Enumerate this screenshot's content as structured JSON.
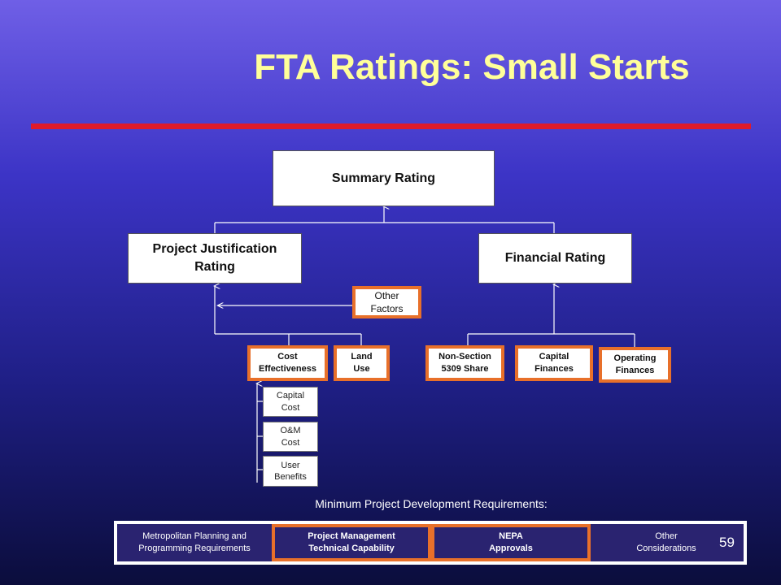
{
  "slide": {
    "title": "FTA Ratings: Small Starts",
    "page_number": "59"
  },
  "diagram": {
    "summary": "Summary Rating",
    "project_justification": {
      "line1": "Project Justification",
      "line2": "Rating"
    },
    "financial": "Financial Rating",
    "other_factors": {
      "line1": "Other",
      "line2": "Factors"
    },
    "cost_effectiveness": {
      "line1": "Cost",
      "line2": "Effectiveness"
    },
    "land_use": {
      "line1": "Land",
      "line2": "Use"
    },
    "non_section": {
      "line1": "Non-Section",
      "line2": "5309 Share"
    },
    "capital_finances": {
      "line1": "Capital",
      "line2": "Finances"
    },
    "operating_finances": {
      "line1": "Operating",
      "line2": "Finances"
    },
    "capital_cost": {
      "line1": "Capital",
      "line2": "Cost"
    },
    "om_cost": {
      "line1": "O&M",
      "line2": "Cost"
    },
    "user_benefits": {
      "line1": "User",
      "line2": "Benefits"
    }
  },
  "requirements": {
    "label": "Minimum Project Development Requirements:",
    "items": [
      {
        "line1": "Metropolitan Planning and",
        "line2": "Programming Requirements",
        "highlighted": false
      },
      {
        "line1": "Project Management",
        "line2": "Technical Capability",
        "highlighted": true
      },
      {
        "line1": "NEPA",
        "line2": "Approvals",
        "highlighted": true
      },
      {
        "line1": "Other",
        "line2": "Considerations",
        "highlighted": false
      }
    ]
  },
  "colors": {
    "title": "#ffff99",
    "rule": "#e01b2b",
    "highlight_border": "#e8702a",
    "background_top": "#6f5fe6",
    "background_bottom": "#0b0d3c"
  }
}
